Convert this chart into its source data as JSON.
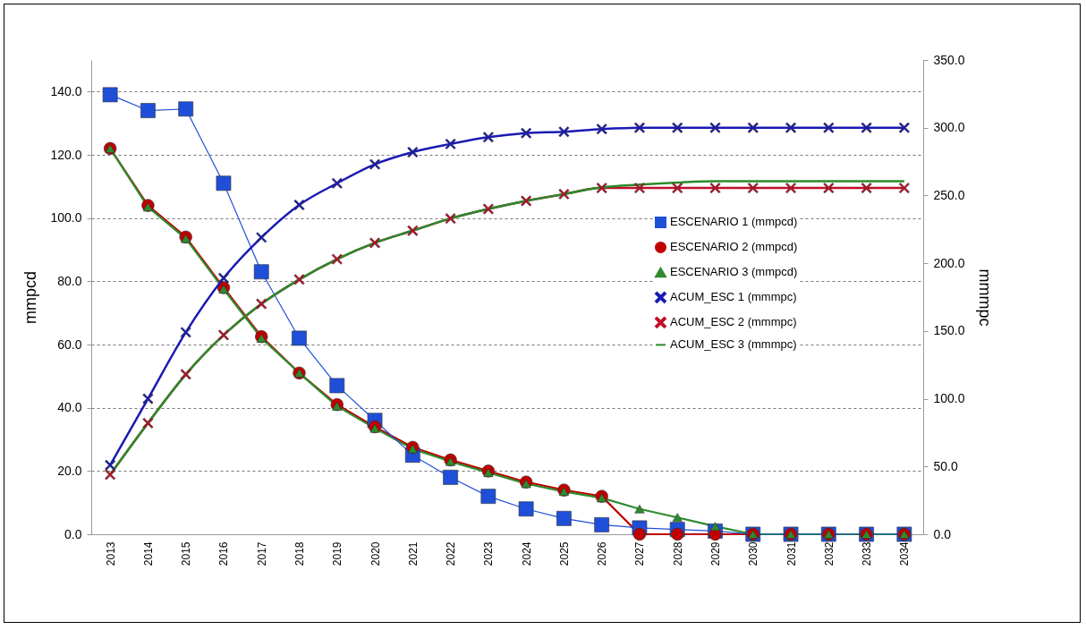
{
  "chart_data": {
    "type": "line",
    "xlabel": null,
    "ylabel": "mmpcd",
    "y2label": "mmmpc",
    "categories": [
      "2013",
      "2014",
      "2015",
      "2016",
      "2017",
      "2018",
      "2019",
      "2020",
      "2021",
      "2022",
      "2023",
      "2024",
      "2025",
      "2026",
      "2027",
      "2028",
      "2029",
      "2030",
      "2031",
      "2032",
      "2033",
      "2034"
    ],
    "ylim": [
      0,
      150
    ],
    "yticks": [
      {
        "value": 0,
        "label": "0.0"
      },
      {
        "value": 20,
        "label": "20.0"
      },
      {
        "value": 40,
        "label": "40.0"
      },
      {
        "value": 60,
        "label": "60.0"
      },
      {
        "value": 80,
        "label": "80.0"
      },
      {
        "value": 100,
        "label": "100.0"
      },
      {
        "value": 120,
        "label": "120.0"
      },
      {
        "value": 140,
        "label": "140.0"
      }
    ],
    "y2lim": [
      0,
      350
    ],
    "y2ticks": [
      {
        "value": 0,
        "label": "0.0"
      },
      {
        "value": 50,
        "label": "50.0"
      },
      {
        "value": 100,
        "label": "100.0"
      },
      {
        "value": 150,
        "label": "150.0"
      },
      {
        "value": 200,
        "label": "200.0"
      },
      {
        "value": 250,
        "label": "250.0"
      },
      {
        "value": 300,
        "label": "300.0"
      },
      {
        "value": 350,
        "label": "350.0"
      }
    ],
    "grid": "y",
    "legend": "right",
    "series": [
      {
        "name": "ESCENARIO 1 (mmpcd)",
        "color": "#1f4fd8",
        "marker": "square",
        "values": [
          139,
          134,
          134.5,
          111,
          83,
          62,
          47,
          36,
          25,
          18,
          12,
          8,
          5,
          3,
          2,
          1.5,
          1,
          0,
          0,
          0,
          0,
          0
        ]
      },
      {
        "name": "ESCENARIO 2 (mmpcd)",
        "color": "#c00000",
        "marker": "circle",
        "values": [
          122,
          104,
          94,
          78,
          62.5,
          51,
          41,
          34,
          27.5,
          23.5,
          20,
          16.5,
          14,
          12,
          0,
          0,
          0,
          0,
          0,
          0,
          0,
          0
        ]
      },
      {
        "name": "ESCENARIO 3 (mmpcd)",
        "color": "#2e8b2e",
        "marker": "triangle",
        "values": [
          122,
          103.5,
          93.5,
          77.5,
          62,
          51,
          40.5,
          33.5,
          27,
          23,
          19.5,
          16,
          13.5,
          11.5,
          8,
          5.3,
          2.5,
          0,
          0,
          0,
          0,
          0
        ]
      },
      {
        "name": "ACUM_ESC 1 (mmmpc)",
        "color": "#1a1ab4",
        "marker": "cross",
        "axis": "y2",
        "values": [
          51,
          100,
          149,
          189,
          219,
          243,
          259,
          273,
          282,
          288,
          293,
          296,
          297,
          299,
          300,
          300,
          300,
          300,
          300,
          300,
          300,
          300
        ]
      },
      {
        "name": "ACUM_ESC 2 (mmmpc)",
        "color": "#c0102a",
        "marker": "cross",
        "axis": "y2",
        "values": [
          44,
          82,
          118,
          147,
          170,
          188,
          203,
          215,
          224,
          233,
          240,
          246,
          251,
          255.5,
          255.5,
          255.5,
          255.5,
          255.5,
          255.5,
          255.5,
          255.5,
          255.5
        ]
      },
      {
        "name": "ACUM_ESC 3 (mmmpc)",
        "color": "#2a8a2a",
        "marker": "none",
        "axis": "y2",
        "values": [
          44,
          82,
          118,
          147,
          170,
          188,
          203,
          215,
          224,
          233,
          240,
          246,
          251,
          256,
          258,
          259.5,
          260.5,
          260.5,
          260.5,
          260.5,
          260.5,
          260.5
        ]
      }
    ]
  }
}
